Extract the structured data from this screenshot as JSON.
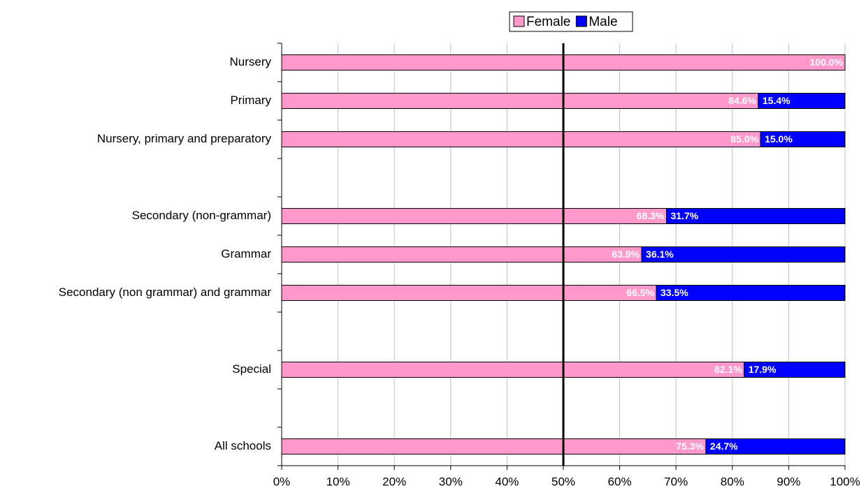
{
  "chart_data": {
    "type": "stacked_hbar",
    "categories": [
      "Nursery",
      "Primary",
      "Nursery, primary and preparatory",
      null,
      "Secondary (non-grammar)",
      "Grammar",
      "Secondary (non grammar) and grammar",
      null,
      "Special",
      null,
      "All schools"
    ],
    "series": [
      {
        "name": "Female",
        "color": "#ff99cc",
        "values": [
          100,
          84.6,
          85.0,
          null,
          68.3,
          63.9,
          66.5,
          null,
          82.1,
          null,
          75.3
        ],
        "value_labels": [
          "100.0%",
          "84.6%",
          "85.0%",
          null,
          "68.3%",
          "63.9%",
          "66.5%",
          null,
          "82.1%",
          null,
          "75.3%"
        ]
      },
      {
        "name": "Male",
        "color": "#0000ff",
        "values": [
          0,
          15.4,
          15.0,
          null,
          31.7,
          36.1,
          33.5,
          null,
          17.9,
          null,
          24.7
        ],
        "value_labels": [
          null,
          "15.4%",
          "15.0%",
          null,
          "31.7%",
          "36.1%",
          "33.5%",
          null,
          "17.9%",
          null,
          "24.7%"
        ]
      }
    ],
    "xlim": [
      0,
      100
    ],
    "xticks": [
      {
        "value": 0,
        "label": "0%"
      },
      {
        "value": 10,
        "label": "10%"
      },
      {
        "value": 20,
        "label": "20%"
      },
      {
        "value": 30,
        "label": "30%"
      },
      {
        "value": 40,
        "label": "40%"
      },
      {
        "value": 50,
        "label": "50%"
      },
      {
        "value": 60,
        "label": "60%"
      },
      {
        "value": 70,
        "label": "70%"
      },
      {
        "value": 80,
        "label": "80%"
      },
      {
        "value": 90,
        "label": "90%"
      },
      {
        "value": 100,
        "label": "100%"
      }
    ],
    "grid": true,
    "reference_line": 50,
    "legend": "top"
  }
}
